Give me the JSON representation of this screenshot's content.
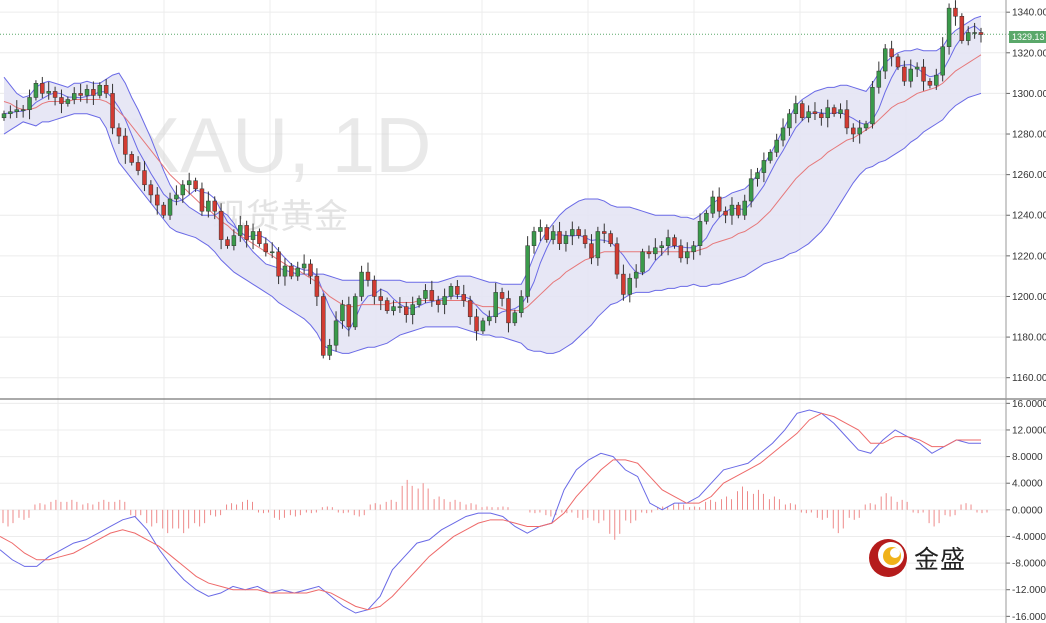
{
  "watermark": {
    "symbol": "XAU, 1D",
    "subtitle": "现货黄金"
  },
  "brand": {
    "name": "金盛"
  },
  "current_price_label": "1329.13",
  "colors": {
    "up": "#3a9a4a",
    "down": "#d23b32",
    "bollinger": "#6a6ae6",
    "band_fill": "#e4e4f4",
    "ma": "#e6787a",
    "macd": "#6a6ae6",
    "signal": "#ee6a6a",
    "hist": "#ee8a8a",
    "price_line": "#5aa86a"
  },
  "chart_data": [
    {
      "type": "candlestick",
      "title": "XAU, 1D",
      "y_ticks": [
        "1340.00",
        "1320.00",
        "1300.00",
        "1280.00",
        "1260.00",
        "1240.00",
        "1220.00",
        "1200.00",
        "1180.00",
        "1160.00"
      ],
      "ylim": [
        1150,
        1346
      ],
      "current_price": 1329.13,
      "grid": true,
      "indicators": [
        "Bollinger Bands",
        "Moving Average"
      ],
      "closes": [
        1290,
        1291,
        1292,
        1292,
        1298,
        1305,
        1300,
        1301,
        1298,
        1295,
        1297,
        1300,
        1299,
        1302,
        1299,
        1304,
        1300,
        1283,
        1279,
        1270,
        1266,
        1262,
        1255,
        1250,
        1245,
        1240,
        1248,
        1250,
        1255,
        1257,
        1253,
        1242,
        1247,
        1242,
        1228,
        1225,
        1230,
        1235,
        1228,
        1232,
        1226,
        1222,
        1222,
        1210,
        1215,
        1210,
        1214,
        1216,
        1210,
        1200,
        1171,
        1176,
        1188,
        1196,
        1185,
        1200,
        1212,
        1208,
        1200,
        1198,
        1193,
        1195,
        1195,
        1191,
        1196,
        1199,
        1203,
        1198,
        1196,
        1200,
        1205,
        1201,
        1198,
        1190,
        1183,
        1188,
        1190,
        1202,
        1199,
        1187,
        1192,
        1200,
        1225,
        1232,
        1234,
        1228,
        1232,
        1226,
        1230,
        1233,
        1230,
        1226,
        1219,
        1232,
        1231,
        1226,
        1211,
        1201,
        1209,
        1212,
        1222,
        1221,
        1224,
        1225,
        1229,
        1225,
        1219,
        1222,
        1225,
        1237,
        1241,
        1249,
        1242,
        1240,
        1245,
        1240,
        1247,
        1258,
        1261,
        1267,
        1271,
        1277,
        1283,
        1290,
        1295,
        1288,
        1291,
        1290,
        1288,
        1293,
        1290,
        1292,
        1283,
        1280,
        1283,
        1285,
        1303,
        1311,
        1322,
        1318,
        1313,
        1306,
        1312,
        1313,
        1306,
        1304,
        1309,
        1323,
        1342,
        1338,
        1326,
        1330,
        1330,
        1329
      ],
      "bb_upper": [
        1308,
        1304,
        1300,
        1298,
        1299,
        1303,
        1305,
        1306,
        1305,
        1304,
        1303,
        1305,
        1305,
        1306,
        1305,
        1305,
        1307,
        1309,
        1310,
        1305,
        1298,
        1292,
        1285,
        1278,
        1270,
        1262,
        1255,
        1250,
        1247,
        1244,
        1242,
        1240,
        1240,
        1240,
        1242,
        1240,
        1236,
        1230,
        1226,
        1222,
        1219,
        1216,
        1215,
        1214,
        1213,
        1212,
        1211,
        1211,
        1211,
        1211,
        1211,
        1210,
        1209,
        1208,
        1208,
        1208,
        1208,
        1208,
        1208,
        1208,
        1208,
        1208,
        1208,
        1207,
        1207,
        1207,
        1207,
        1207,
        1207,
        1208,
        1209,
        1210,
        1210,
        1210,
        1209,
        1208,
        1207,
        1207,
        1206,
        1206,
        1206,
        1206,
        1212,
        1220,
        1227,
        1232,
        1236,
        1240,
        1243,
        1245,
        1247,
        1248,
        1248,
        1248,
        1247,
        1245,
        1244,
        1244,
        1244,
        1243,
        1242,
        1241,
        1240,
        1240,
        1240,
        1240,
        1239,
        1239,
        1238,
        1240,
        1243,
        1246,
        1248,
        1249,
        1251,
        1252,
        1253,
        1256,
        1260,
        1265,
        1270,
        1276,
        1282,
        1288,
        1294,
        1297,
        1299,
        1301,
        1302,
        1303,
        1303,
        1304,
        1304,
        1303,
        1302,
        1301,
        1305,
        1310,
        1315,
        1318,
        1320,
        1321,
        1321,
        1322,
        1321,
        1321,
        1321,
        1323,
        1328,
        1331,
        1333,
        1335,
        1337,
        1338
      ],
      "bb_lower": [
        1280,
        1282,
        1284,
        1286,
        1285,
        1284,
        1286,
        1286,
        1287,
        1288,
        1289,
        1290,
        1290,
        1290,
        1289,
        1288,
        1283,
        1274,
        1266,
        1262,
        1258,
        1254,
        1250,
        1246,
        1242,
        1238,
        1234,
        1232,
        1231,
        1230,
        1229,
        1227,
        1225,
        1222,
        1218,
        1215,
        1212,
        1210,
        1208,
        1206,
        1204,
        1202,
        1200,
        1197,
        1195,
        1193,
        1191,
        1189,
        1186,
        1182,
        1176,
        1174,
        1173,
        1172,
        1172,
        1173,
        1174,
        1175,
        1175,
        1176,
        1177,
        1179,
        1181,
        1182,
        1183,
        1184,
        1185,
        1185,
        1185,
        1185,
        1185,
        1185,
        1184,
        1183,
        1182,
        1181,
        1181,
        1180,
        1180,
        1179,
        1178,
        1177,
        1174,
        1173,
        1173,
        1172,
        1172,
        1173,
        1175,
        1177,
        1180,
        1183,
        1186,
        1190,
        1193,
        1196,
        1197,
        1199,
        1201,
        1202,
        1202,
        1202,
        1203,
        1203,
        1204,
        1204,
        1205,
        1205,
        1206,
        1205,
        1205,
        1206,
        1206,
        1207,
        1208,
        1209,
        1210,
        1212,
        1214,
        1216,
        1217,
        1218,
        1219,
        1221,
        1222,
        1224,
        1226,
        1229,
        1232,
        1236,
        1241,
        1246,
        1251,
        1256,
        1260,
        1263,
        1264,
        1266,
        1267,
        1269,
        1271,
        1273,
        1276,
        1278,
        1281,
        1283,
        1285,
        1287,
        1291,
        1294,
        1296,
        1298,
        1299,
        1300
      ],
      "ma": [
        1296,
        1295,
        1293,
        1292,
        1292,
        1293,
        1295,
        1296,
        1296,
        1296,
        1296,
        1297,
        1297,
        1297,
        1297,
        1297,
        1296,
        1294,
        1291,
        1288,
        1284,
        1280,
        1276,
        1272,
        1268,
        1264,
        1260,
        1257,
        1254,
        1251,
        1248,
        1245,
        1243,
        1240,
        1237,
        1235,
        1232,
        1230,
        1228,
        1226,
        1224,
        1222,
        1220,
        1218,
        1216,
        1214,
        1213,
        1211,
        1209,
        1207,
        1203,
        1200,
        1198,
        1196,
        1195,
        1195,
        1196,
        1196,
        1196,
        1196,
        1196,
        1197,
        1197,
        1197,
        1197,
        1198,
        1198,
        1198,
        1198,
        1198,
        1198,
        1198,
        1198,
        1197,
        1196,
        1195,
        1195,
        1195,
        1194,
        1193,
        1193,
        1193,
        1195,
        1198,
        1201,
        1204,
        1207,
        1209,
        1212,
        1214,
        1216,
        1218,
        1219,
        1221,
        1222,
        1222,
        1222,
        1222,
        1222,
        1222,
        1222,
        1222,
        1222,
        1222,
        1222,
        1222,
        1222,
        1222,
        1222,
        1223,
        1224,
        1226,
        1227,
        1228,
        1229,
        1231,
        1232,
        1234,
        1236,
        1239,
        1242,
        1246,
        1250,
        1254,
        1258,
        1261,
        1264,
        1266,
        1268,
        1271,
        1273,
        1275,
        1277,
        1278,
        1280,
        1282,
        1284,
        1287,
        1290,
        1293,
        1295,
        1296,
        1298,
        1300,
        1301,
        1302,
        1303,
        1305,
        1308,
        1311,
        1313,
        1315,
        1317,
        1319
      ]
    },
    {
      "type": "line",
      "title": "MACD",
      "y_ticks": [
        "16.0000",
        "12.0000",
        "8.0000",
        "4.0000",
        "0.0000",
        "-4.0000",
        "-8.0000",
        "-12.0000",
        "-16.0000"
      ],
      "ylim": [
        -17,
        16.5
      ],
      "series": [
        {
          "values": [
            -6,
            -7.5,
            -8.5,
            -8.5,
            -7,
            -6,
            -5,
            -4.5,
            -3.5,
            -2.5,
            -1.5,
            -1,
            -3,
            -6,
            -8.5,
            -10.5,
            -12,
            -13,
            -12.5,
            -11.5,
            -12,
            -11.5,
            -12.5,
            -12,
            -12.5,
            -12,
            -11.5,
            -13,
            -14.5,
            -15.5,
            -15,
            -13,
            -9,
            -7,
            -5,
            -4.5,
            -3,
            -2,
            -1,
            -0.5,
            -0.5,
            -1,
            -2.5,
            -3.5,
            -2.5,
            -2,
            3,
            6,
            7.5,
            8.5,
            8,
            6,
            5,
            1,
            0,
            1,
            1,
            2,
            4,
            6,
            6.5,
            7,
            8.5,
            10,
            12,
            14.5,
            15,
            14.5,
            13,
            11,
            9,
            8.5,
            10.5,
            12,
            11,
            10,
            8.5,
            9.5,
            10.5,
            10,
            10
          ]
        },
        {
          "values": [
            -4,
            -5,
            -6.5,
            -7.5,
            -7.5,
            -7,
            -6.5,
            -5.5,
            -4.5,
            -3.5,
            -3,
            -3.5,
            -4.5,
            -5.5,
            -7,
            -8.5,
            -10,
            -11,
            -11.5,
            -12,
            -12,
            -12,
            -12.5,
            -12.5,
            -12.5,
            -12.5,
            -12,
            -12.5,
            -13.5,
            -14.5,
            -15,
            -14.5,
            -13,
            -11,
            -9,
            -7,
            -5.5,
            -4,
            -3,
            -2,
            -1.5,
            -1.5,
            -2,
            -2.5,
            -2.5,
            -2,
            -0.5,
            2,
            4,
            6,
            7.5,
            7.5,
            7,
            5,
            3,
            2,
            1,
            1,
            2,
            4,
            5,
            6,
            7,
            8.5,
            10,
            11.5,
            13.5,
            14.5,
            14,
            13,
            12,
            10,
            10,
            11,
            11,
            10.5,
            9.5,
            9.5,
            10.5,
            10.5,
            10.5
          ]
        },
        {
          "name": "hist",
          "values": [
            -2.5,
            -1.5,
            1,
            1.5,
            1.5,
            1,
            1.5,
            1.5,
            -1,
            -2.5,
            -3.5,
            -3.5,
            -2.5,
            -1,
            1,
            1.5,
            -0.5,
            -1.5,
            -1,
            -0.5,
            0.5,
            -0.5,
            -1,
            1,
            1.5,
            4.5,
            4,
            2,
            1.5,
            1,
            0.5,
            0.5,
            0,
            -0.5,
            -1,
            -0.5,
            -1.5,
            -2,
            -4.5,
            -2,
            -0.5,
            0.5,
            1,
            0.5,
            1.5,
            2,
            3.5,
            3,
            2,
            1,
            -0.5,
            -1.5,
            -3.5,
            -1.5,
            1,
            2.5,
            1.5,
            -0.5,
            -2.5,
            -1,
            1,
            -0.5
          ]
        }
      ]
    }
  ]
}
